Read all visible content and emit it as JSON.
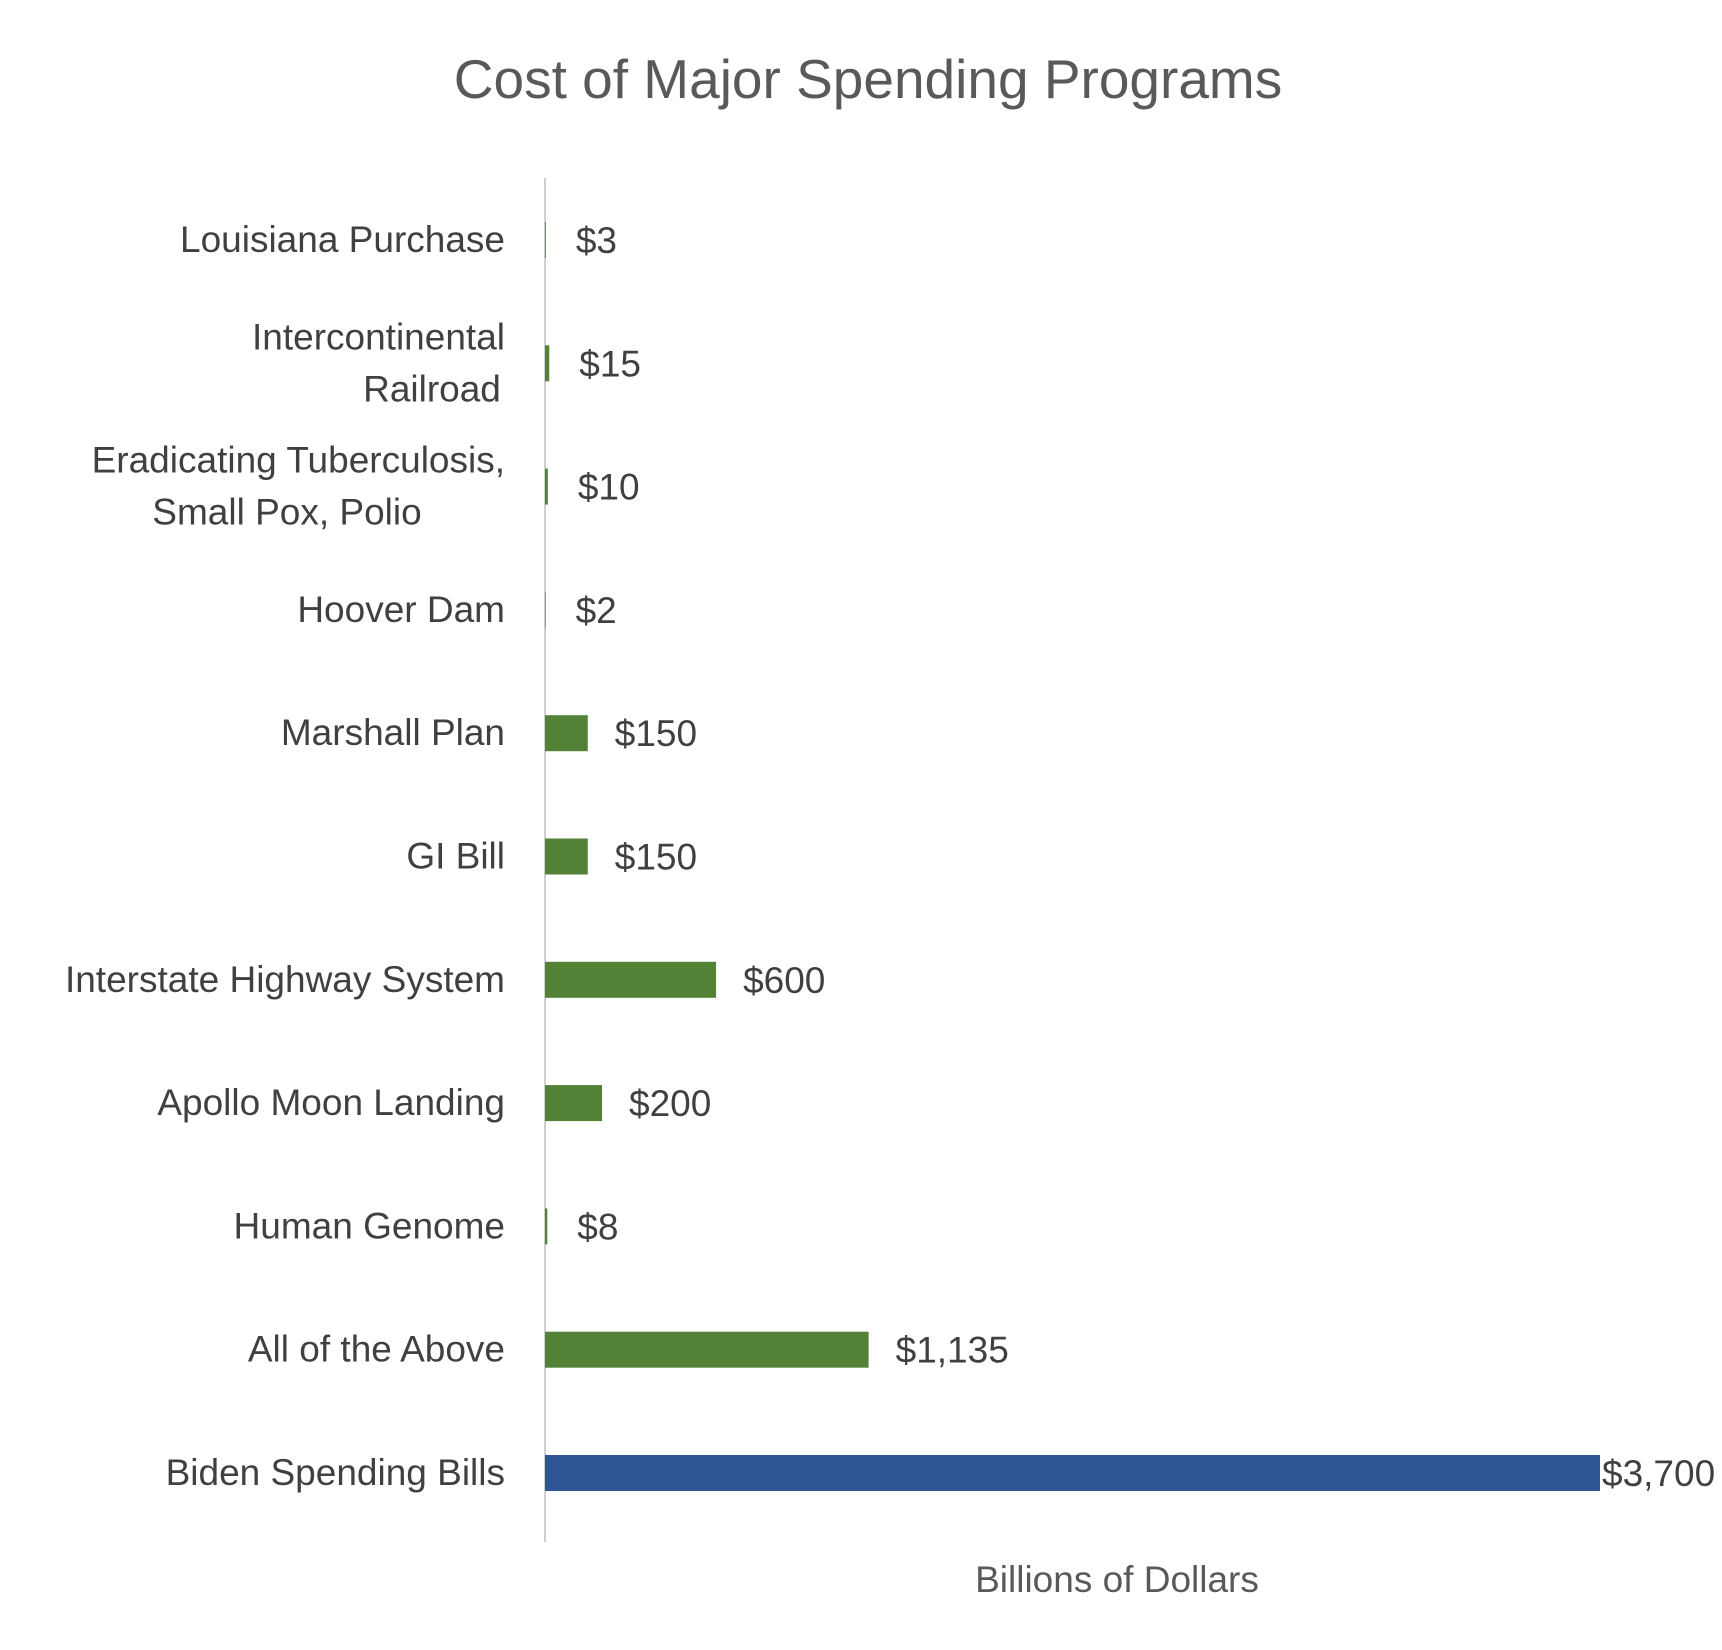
{
  "chart_data": {
    "type": "bar",
    "orientation": "horizontal",
    "title": "Cost of Major Spending Programs",
    "xlabel": "Billions of Dollars",
    "ylabel": "",
    "grid": false,
    "legend": "none",
    "xlim": [
      0,
      3700
    ],
    "categories": [
      [
        "Louisiana Purchase"
      ],
      [
        "Intercontinental",
        "Railroad"
      ],
      [
        "Eradicating Tuberculosis,",
        "Small Pox, Polio"
      ],
      [
        "Hoover Dam"
      ],
      [
        "Marshall Plan"
      ],
      [
        "GI Bill"
      ],
      [
        "Interstate Highway System"
      ],
      [
        "Apollo Moon Landing"
      ],
      [
        "Human Genome"
      ],
      [
        "All of the Above"
      ],
      [
        "Biden Spending Bills"
      ]
    ],
    "values": [
      3,
      15,
      10,
      2,
      150,
      150,
      600,
      200,
      8,
      1135,
      3700
    ],
    "value_labels": [
      "$3",
      "$15",
      "$10",
      "$2",
      "$150",
      "$150",
      "$600",
      "$200",
      "$8",
      "$1,135",
      "$3,700"
    ],
    "colors": {
      "default_bar": "#538135",
      "highlight_bar": "#2F5597",
      "axis_line": "#d0d0d0"
    },
    "highlight_index": 10
  }
}
